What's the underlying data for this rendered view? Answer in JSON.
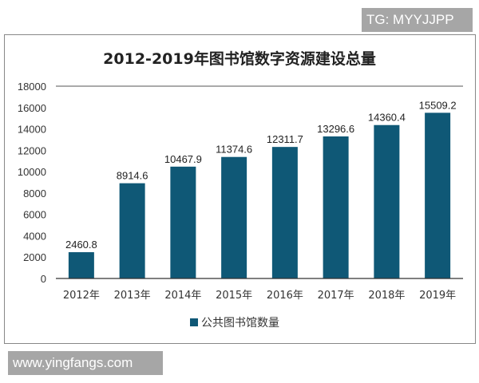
{
  "watermarks": {
    "top": "TG: MYYJJPP",
    "bottom": "www.yingfangs.com"
  },
  "chart_data": {
    "type": "bar",
    "title": "2012-2019年图书馆数字资源建设总量",
    "categories": [
      "2012年",
      "2013年",
      "2014年",
      "2015年",
      "2016年",
      "2017年",
      "2018年",
      "2019年"
    ],
    "series": [
      {
        "name": "公共图书馆数量",
        "values": [
          2460.8,
          8914.6,
          10467.9,
          11374.6,
          12311.7,
          13296.6,
          14360.4,
          15509.2
        ],
        "color": "#0f5876"
      }
    ],
    "data_labels": [
      "2460.8",
      "8914.6",
      "10467.9",
      "11374.6",
      "12311.7",
      "13296.6",
      "14360.4",
      "15509.2"
    ],
    "ylim": [
      0,
      18000
    ],
    "yticks": [
      0,
      2000,
      4000,
      6000,
      8000,
      10000,
      12000,
      14000,
      16000,
      18000
    ],
    "xlabel": "",
    "ylabel": "",
    "legend": "bottom",
    "grid": false
  }
}
